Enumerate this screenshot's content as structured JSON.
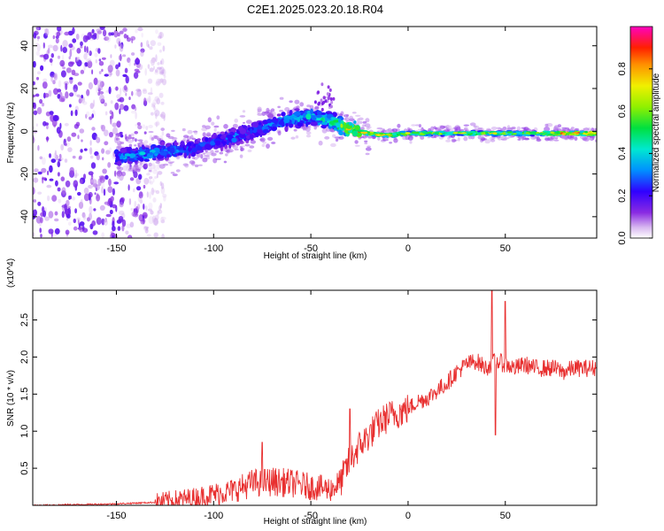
{
  "title": "C2E1.2025.023.20.18.R04",
  "chart_data": [
    {
      "type": "heatmap",
      "xlabel": "Height of straight line (km)",
      "ylabel": "Frequency (Hz)",
      "xlim": [
        -193,
        97
      ],
      "ylim": [
        -50,
        49
      ],
      "xticks": [
        -150,
        -100,
        -50,
        0,
        50
      ],
      "yticks": [
        -40,
        -20,
        0,
        20,
        40
      ],
      "colorbar": {
        "label": "Normalized spectral amplitude",
        "range": [
          0,
          1
        ],
        "ticks": [
          "0.0",
          "0.2",
          "0.4",
          "0.6",
          "0.8"
        ],
        "colormap": "rainbow"
      },
      "signal_track": {
        "x": [
          -150,
          -130,
          -110,
          -100,
          -90,
          -80,
          -70,
          -60,
          -50,
          -40,
          -30,
          -20,
          -10,
          0,
          20,
          40,
          60,
          80,
          97
        ],
        "center_freq": [
          -12,
          -10,
          -8,
          -5,
          -3,
          0,
          3,
          6,
          7,
          5,
          1,
          -1,
          -2,
          -1,
          -1,
          -1,
          -1,
          -1,
          -1
        ],
        "peak_amplitude": [
          0.35,
          0.4,
          0.3,
          0.3,
          0.35,
          0.3,
          0.35,
          0.4,
          0.45,
          0.5,
          0.8,
          0.85,
          0.9,
          0.75,
          0.7,
          0.7,
          0.7,
          0.9,
          0.95
        ]
      },
      "noise_region": [
        -193,
        -135
      ]
    },
    {
      "type": "line",
      "xlabel": "Height of straight line (km)",
      "ylabel": "SNR (10 * v/v)",
      "y_multiplier": "(x10^4)",
      "xlim": [
        -193,
        97
      ],
      "ylim": [
        0,
        2.9
      ],
      "xticks": [
        -150,
        -100,
        -50,
        0,
        50
      ],
      "yticks": [
        0.5,
        1.0,
        1.5,
        2.0,
        2.5
      ],
      "line_color": "#e83030",
      "x": [
        -193,
        -170,
        -150,
        -130,
        -120,
        -110,
        -100,
        -90,
        -80,
        -70,
        -60,
        -50,
        -40,
        -35,
        -30,
        -25,
        -20,
        -15,
        -10,
        -5,
        0,
        5,
        10,
        15,
        20,
        25,
        30,
        35,
        40,
        45,
        50,
        55,
        60,
        65,
        70,
        75,
        80,
        85,
        90,
        97
      ],
      "y": [
        0.0,
        0.01,
        0.02,
        0.04,
        0.07,
        0.1,
        0.15,
        0.2,
        0.3,
        0.32,
        0.3,
        0.25,
        0.22,
        0.3,
        0.6,
        0.8,
        0.95,
        1.1,
        1.2,
        1.25,
        1.3,
        1.4,
        1.45,
        1.55,
        1.65,
        1.8,
        1.9,
        1.95,
        1.85,
        1.95,
        1.9,
        1.85,
        1.9,
        1.85,
        1.85,
        1.85,
        1.8,
        1.85,
        1.85,
        1.85
      ],
      "spikes": [
        {
          "x": -75,
          "y": 0.85
        },
        {
          "x": -30,
          "y": 1.3
        },
        {
          "x": 43,
          "y": 2.95
        },
        {
          "x": 45,
          "y": 0.95
        },
        {
          "x": 50,
          "y": 2.75
        }
      ]
    }
  ]
}
